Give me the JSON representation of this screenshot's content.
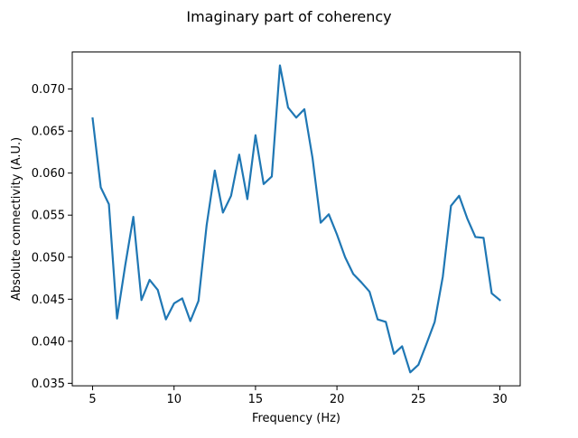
{
  "chart_data": {
    "type": "line",
    "title": "Imaginary part of coherency",
    "xlabel": "Frequency (Hz)",
    "ylabel": "Absolute connectivity (A.U.)",
    "xlim": [
      3.75,
      31.25
    ],
    "ylim": [
      0.0347,
      0.0744
    ],
    "xticks": [
      5,
      10,
      15,
      20,
      25,
      30
    ],
    "xtick_labels": [
      "5",
      "10",
      "15",
      "20",
      "25",
      "30"
    ],
    "yticks": [
      0.035,
      0.04,
      0.045,
      0.05,
      0.055,
      0.06,
      0.065,
      0.07
    ],
    "ytick_labels": [
      "0.035",
      "0.040",
      "0.045",
      "0.050",
      "0.055",
      "0.060",
      "0.065",
      "0.070"
    ],
    "grid": false,
    "color": "#1f77b4",
    "x": [
      5,
      5.5,
      6,
      6.5,
      7,
      7.5,
      8,
      8.5,
      9,
      9.5,
      10,
      10.5,
      11,
      11.5,
      12,
      12.5,
      13,
      13.5,
      14,
      14.5,
      15,
      15.5,
      16,
      16.5,
      17,
      17.5,
      18,
      18.5,
      19,
      19.5,
      20,
      20.5,
      21,
      21.5,
      22,
      22.5,
      23,
      23.5,
      24,
      24.5,
      25,
      25.5,
      26,
      26.5,
      27,
      27.5,
      28,
      28.5,
      29,
      29.5,
      30
    ],
    "y": [
      0.0665,
      0.0583,
      0.0563,
      0.0427,
      0.049,
      0.0548,
      0.0449,
      0.0473,
      0.0461,
      0.0426,
      0.0445,
      0.0451,
      0.0424,
      0.0448,
      0.0538,
      0.0603,
      0.0553,
      0.0573,
      0.0622,
      0.0569,
      0.0645,
      0.0587,
      0.0596,
      0.0728,
      0.0678,
      0.0666,
      0.0676,
      0.0618,
      0.0541,
      0.0551,
      0.0527,
      0.05,
      0.048,
      0.047,
      0.0459,
      0.0426,
      0.0423,
      0.0385,
      0.0394,
      0.0363,
      0.0372,
      0.0397,
      0.0423,
      0.0477,
      0.0561,
      0.0573,
      0.0546,
      0.0524,
      0.0523,
      0.0457,
      0.0449
    ]
  }
}
